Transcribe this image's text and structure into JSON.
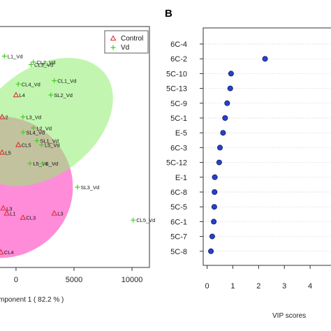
{
  "panel_b_letter": "B",
  "chart_data": [
    {
      "type": "scatter",
      "xlabel": "mponent 1 ( 82.2 % )",
      "x_ticks": [
        0,
        5000,
        10000
      ],
      "x_tick_labels": [
        "0",
        "5000",
        "10000"
      ],
      "xlim": [
        -1500,
        11500
      ],
      "ylim": [
        -140,
        145
      ],
      "legend": {
        "placement": "top-right",
        "entries": [
          "Control",
          "Vd"
        ]
      },
      "colors": {
        "control": "#e03030",
        "vd": "#44cc22",
        "ellipse_control": "#ff66cc",
        "ellipse_vd": "#90ee70"
      },
      "ellipses": [
        {
          "group": "control",
          "cx": -1500,
          "cy": -45,
          "rx": 6400,
          "ry": 84,
          "angle_deg": 0
        },
        {
          "group": "vd",
          "cx": 2300,
          "cy": 32,
          "rx": 6800,
          "ry": 63,
          "angle_deg": 38
        }
      ],
      "points": [
        {
          "label": "L1_Vd",
          "group": "vd",
          "x": -1000,
          "y": 110
        },
        {
          "label": "CL2_Vd",
          "group": "vd",
          "x": 1500,
          "y": 103
        },
        {
          "label": "CL3_Vd",
          "group": "vd",
          "x": 1300,
          "y": 100
        },
        {
          "label": "CL1_Vd",
          "group": "vd",
          "x": 3300,
          "y": 81
        },
        {
          "label": "CL4_Vd",
          "group": "vd",
          "x": 200,
          "y": 77
        },
        {
          "label": "SL2_Vd",
          "group": "vd",
          "x": 3000,
          "y": 64
        },
        {
          "label": "L4",
          "group": "control",
          "x": 0,
          "y": 64
        },
        {
          "label": "L3_Vd",
          "group": "vd",
          "x": 600,
          "y": 38
        },
        {
          "label": "2",
          "group": "control",
          "x": -1200,
          "y": 38
        },
        {
          "label": "L2_Vd",
          "group": "vd",
          "x": 1500,
          "y": 25
        },
        {
          "label": "SL4_Vd",
          "group": "vd",
          "x": 600,
          "y": 20
        },
        {
          "label": "SL1_Vd",
          "group": "vd",
          "x": 1800,
          "y": 10
        },
        {
          "label": "L5_Vd",
          "group": "vd",
          "x": 2200,
          "y": 5
        },
        {
          "label": "CL5",
          "group": "control",
          "x": 200,
          "y": 5
        },
        {
          "label": "L5",
          "group": "control",
          "x": -1200,
          "y": -4
        },
        {
          "label": "L5_Vd",
          "group": "vd",
          "x": 1200,
          "y": -17
        },
        {
          "label": "L_Vd",
          "group": "vd",
          "x": 2300,
          "y": -17
        },
        {
          "label": "SL3_Vd",
          "group": "vd",
          "x": 5300,
          "y": -45
        },
        {
          "label": "L1",
          "group": "control",
          "x": -800,
          "y": -76
        },
        {
          "label": "L3",
          "group": "control",
          "x": -1100,
          "y": -70
        },
        {
          "label": "CL3",
          "group": "control",
          "x": 600,
          "y": -81
        },
        {
          "label": "L3",
          "group": "control",
          "x": 3300,
          "y": -76
        },
        {
          "label": "CL5_Vd",
          "group": "vd",
          "x": 10100,
          "y": -84
        },
        {
          "label": "CL4",
          "group": "control",
          "x": -1300,
          "y": -122
        }
      ]
    },
    {
      "type": "scatter",
      "xlabel": "VIP scores",
      "xlim": [
        -0.15,
        5
      ],
      "x_ticks": [
        0,
        1,
        2,
        3,
        4
      ],
      "x_tick_labels": [
        "0",
        "1",
        "2",
        "3",
        "4"
      ],
      "categories": [
        "6C-4",
        "6C-2",
        "5C-10",
        "5C-13",
        "5C-9",
        "5C-1",
        "E-5",
        "6C-3",
        "5C-12",
        "E-1",
        "6C-8",
        "5C-5",
        "6C-1",
        "5C-7",
        "5C-8"
      ],
      "values": [
        null,
        2.25,
        0.93,
        0.9,
        0.78,
        0.7,
        0.62,
        0.5,
        0.47,
        0.3,
        0.29,
        0.28,
        0.26,
        0.2,
        0.15
      ],
      "grid": true,
      "colors": {
        "point": "#2b3fcc",
        "point_stroke": "#0a1a66",
        "grid": "#d3d3d3"
      }
    }
  ]
}
